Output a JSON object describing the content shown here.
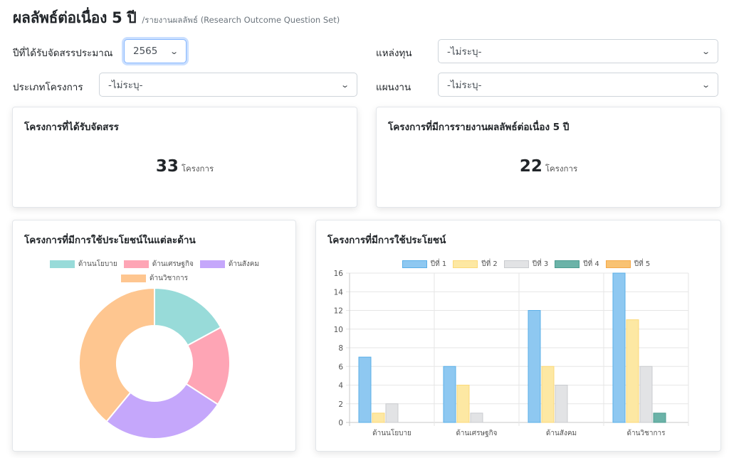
{
  "header": {
    "title": "ผลลัพธ์ต่อเนื่อง 5 ปี",
    "subtitle": "/รายงานผลลัพธ์ (Research Outcome Question Set)"
  },
  "filters": {
    "budget_year": {
      "label": "ปีที่ได้รับจัดสรรประมาณ",
      "value": "2565"
    },
    "project_type": {
      "label": "ประเภทโครงการ",
      "value": "-ไม่ระบุ-"
    },
    "fund_source": {
      "label": "แหล่งทุน",
      "value": "-ไม่ระบุ-"
    },
    "plan": {
      "label": "แผนงาน",
      "value": "-ไม่ระบุ-"
    }
  },
  "stats": {
    "funded": {
      "title": "โครงการที่ได้รับจัดสรร",
      "value": "33",
      "unit": "โครงการ"
    },
    "reported": {
      "title": "โครงการที่มีการรายงานผลลัพธ์ต่อเนื่อง 5 ปี",
      "value": "22",
      "unit": "โครงการ"
    }
  },
  "doughnut_card": {
    "title": "โครงการที่มีการใช้ประโยชน์ในแต่ละด้าน"
  },
  "bar_card": {
    "title": "โครงการที่มีการใช้ประโยชน์"
  },
  "chart_data": [
    {
      "type": "pie",
      "variant": "doughnut",
      "labels": [
        "ด้านนโยบาย",
        "ด้านเศรษฐกิจ",
        "ด้านสังคม",
        "ด้านวิชาการ"
      ],
      "values": [
        7,
        7,
        11,
        16
      ],
      "colors": [
        "#98dbd9",
        "#fea5b5",
        "#c5a7fb",
        "#fec690"
      ],
      "legend_position": "top"
    },
    {
      "type": "bar",
      "categories": [
        "ด้านนโยบาย",
        "ด้านเศรษฐกิจ",
        "ด้านสังคม",
        "ด้านวิชาการ"
      ],
      "series": [
        {
          "name": "ปีที่ 1",
          "values": [
            7,
            6,
            12,
            16
          ],
          "color": "#8ec8f1",
          "border": "#5aafe8"
        },
        {
          "name": "ปีที่ 2",
          "values": [
            1,
            4,
            6,
            11
          ],
          "color": "#fde8a3",
          "border": "#fcd978"
        },
        {
          "name": "ปีที่ 3",
          "values": [
            2,
            1,
            4,
            6
          ],
          "color": "#e2e3e5",
          "border": "#c9cbcf"
        },
        {
          "name": "ปีที่ 4",
          "values": [
            0,
            0,
            0,
            1
          ],
          "color": "#6bb3a8",
          "border": "#4c9c90"
        },
        {
          "name": "ปีที่ 5",
          "values": [
            0,
            0,
            0,
            0
          ],
          "color": "#f9c272",
          "border": "#f5a94a"
        }
      ],
      "ylim": [
        0,
        16
      ],
      "yticks": [
        0,
        2,
        4,
        6,
        8,
        10,
        12,
        14,
        16
      ],
      "grid": true,
      "legend_position": "top"
    }
  ]
}
